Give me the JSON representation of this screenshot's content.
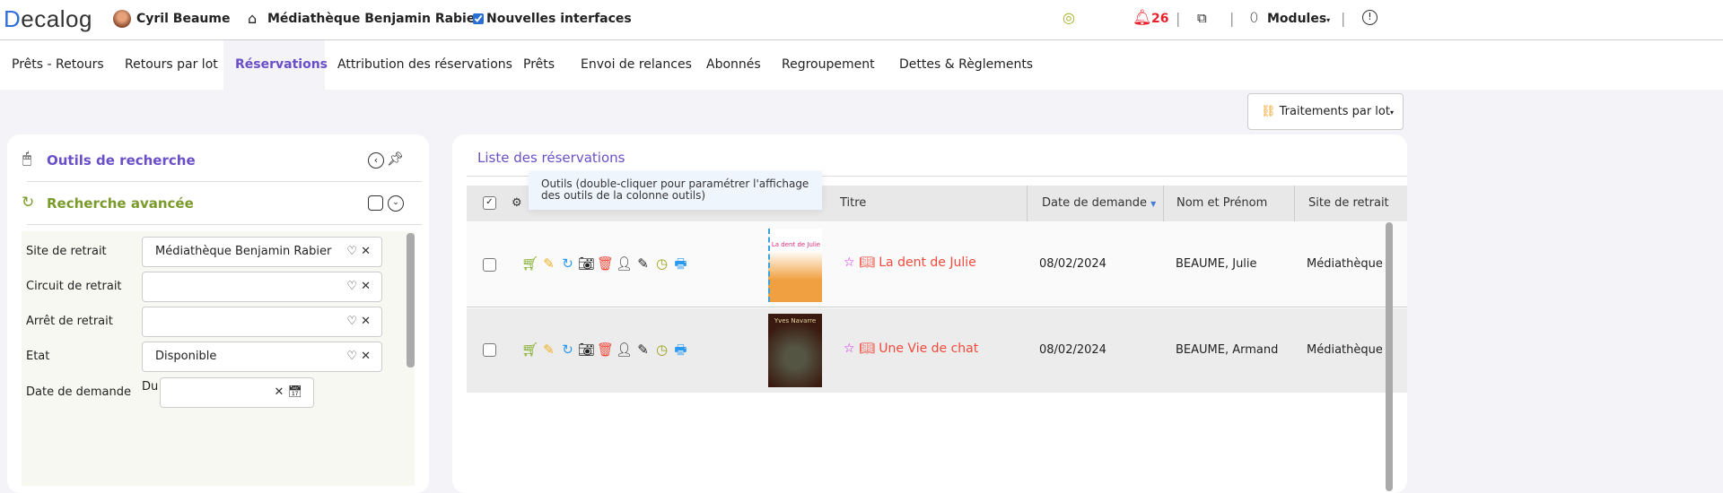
{
  "header": {
    "logo": "Decalog",
    "user": "Cyril Beaume",
    "library": "Médiathèque Benjamin Rabier",
    "new_ui_label": "Nouvelles interfaces",
    "new_ui_checked": true,
    "notifications": "26",
    "modules": "Modules"
  },
  "tabs": [
    {
      "label": "Prêts - Retours"
    },
    {
      "label": "Retours par lot"
    },
    {
      "label": "Réservations",
      "active": true
    },
    {
      "label": "Attribution des réservations"
    },
    {
      "label": "Prêts"
    },
    {
      "label": "Envoi de relances"
    },
    {
      "label": "Abonnés"
    },
    {
      "label": "Regroupement"
    },
    {
      "label": "Dettes & Règlements"
    }
  ],
  "batch_button": "Traitements par lot",
  "search": {
    "title": "Outils de recherche",
    "advanced": "Recherche avancée",
    "fields": [
      {
        "label": "Site de retrait",
        "value": "Médiathèque Benjamin Rabier"
      },
      {
        "label": "Circuit de retrait",
        "value": ""
      },
      {
        "label": "Arrêt de retrait",
        "value": ""
      },
      {
        "label": "Etat",
        "value": "Disponible"
      },
      {
        "label": "Date de demande",
        "from_label": "Du",
        "value": ""
      }
    ]
  },
  "list": {
    "title": "Liste des réservations",
    "tooltip": "Outils (double-cliquer pour paramétrer l'affichage des outils de la colonne outils)",
    "columns": {
      "title": "Titre",
      "date": "Date de demande",
      "name": "Nom et Prénom",
      "site": "Site de retrait"
    },
    "rows": [
      {
        "title": "La dent de Julie",
        "cover_text": "La dent de Julie",
        "date": "08/02/2024",
        "name": "BEAUME, Julie",
        "site": "Médiathèque B"
      },
      {
        "title": "Une Vie de chat",
        "cover_text": "Yves Navarre",
        "date": "08/02/2024",
        "name": "BEAUME, Armand",
        "site": "Médiathèque B"
      }
    ]
  },
  "colors": {
    "accent": "#6a4fc8",
    "green": "#7a9a2a",
    "red": "#f04a3c",
    "notif": "#e8202a"
  }
}
